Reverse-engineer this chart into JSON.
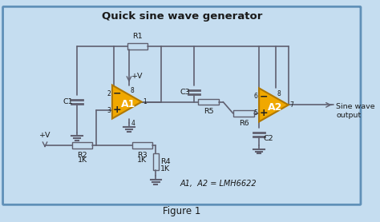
{
  "title": "Quick sine wave generator",
  "figure_label": "Figure 1",
  "bg_color": "#c5ddf0",
  "border_color": "#6090b8",
  "op_amp_color": "#f0a800",
  "op_amp_border": "#b07800",
  "wire_color": "#606070",
  "component_color": "#606070",
  "text_color": "#1a1a1a",
  "note_text": "A1,  A2 = LMH6622",
  "output_text": "Sine wave\noutput",
  "a1_label": "A1",
  "a2_label": "A2",
  "r1_label": "R1",
  "r2_label": "R2",
  "r2_val": "1K",
  "r3_label": "R3",
  "r3_val": "1K",
  "r4_label": "R4",
  "r4_val": "1K",
  "r5_label": "R5",
  "r6_label": "R6",
  "c1_label": "C1",
  "c2_label": "C2",
  "c3_label": "C3",
  "pin_labels": [
    "1",
    "2",
    "3",
    "4",
    "5",
    "6",
    "7",
    "8"
  ],
  "plusv_label": "+V"
}
